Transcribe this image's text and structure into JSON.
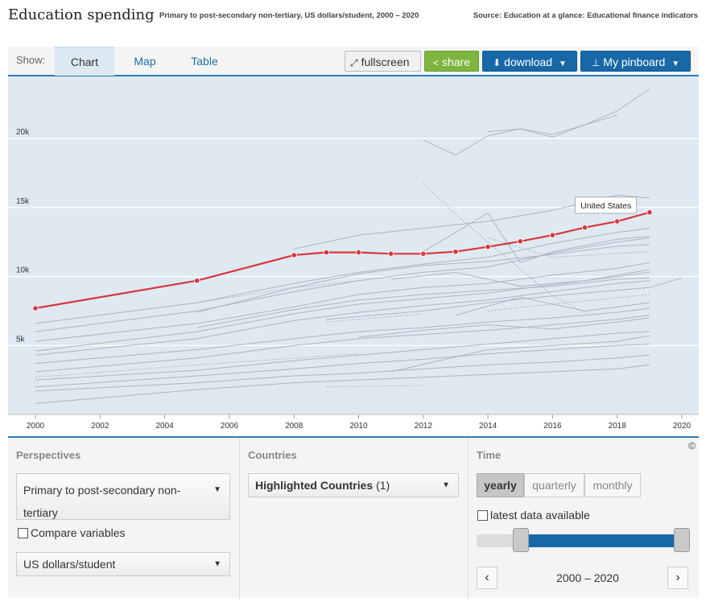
{
  "header": {
    "title": "Education spending",
    "subtitle": "Primary to post-secondary non-tertiary, US dollars/student, 2000 – 2020",
    "source": "Source: Education at a glance: Educational finance indicators"
  },
  "tabs": {
    "show_label": "Show:",
    "items": [
      {
        "label": "Chart",
        "active": true
      },
      {
        "label": "Map",
        "active": false
      },
      {
        "label": "Table",
        "active": false
      }
    ]
  },
  "toolbar": {
    "fullscreen_label": "fullscreen",
    "share_label": "share",
    "download_label": "download",
    "pinboard_label": "My pinboard"
  },
  "colors": {
    "highlight": "#d9363e",
    "background_lines": "#a9b7c2",
    "plot_bg": "#dfe9f2",
    "accent": "#1868a8"
  },
  "chart_data": {
    "type": "line",
    "x_ticks": [
      "2000",
      "2002",
      "2004",
      "2006",
      "2008",
      "2010",
      "2012",
      "2014",
      "2016",
      "2018",
      "2020"
    ],
    "y_ticks": [
      "5k",
      "10k",
      "15k",
      "20k"
    ],
    "xlim": [
      2000,
      2020
    ],
    "ylim": [
      0,
      24500
    ],
    "grid": true,
    "highlight_series": {
      "name": "United States",
      "label": "United States",
      "points": [
        [
          2000,
          7700
        ],
        [
          2005,
          9700
        ],
        [
          2008,
          11550
        ],
        [
          2009,
          11750
        ],
        [
          2010,
          11750
        ],
        [
          2011,
          11650
        ],
        [
          2012,
          11650
        ],
        [
          2013,
          11800
        ],
        [
          2014,
          12150
        ],
        [
          2015,
          12550
        ],
        [
          2016,
          13000
        ],
        [
          2017,
          13550
        ],
        [
          2018,
          14000
        ],
        [
          2019,
          14650
        ]
      ]
    },
    "background_series": [
      {
        "points": [
          [
            2012,
            19900
          ],
          [
            2013,
            18800
          ],
          [
            2014,
            20200
          ],
          [
            2015,
            20700
          ],
          [
            2016,
            20300
          ],
          [
            2017,
            21000
          ],
          [
            2018,
            22000
          ],
          [
            2019,
            23600
          ]
        ]
      },
      {
        "points": [
          [
            2014,
            20500
          ],
          [
            2015,
            20700
          ],
          [
            2016,
            20100
          ],
          [
            2017,
            21000
          ],
          [
            2018,
            21700
          ]
        ]
      },
      {
        "points": [
          [
            2000,
            6600
          ],
          [
            2005,
            8100
          ],
          [
            2008,
            9500
          ],
          [
            2010,
            10300
          ],
          [
            2012,
            10900
          ],
          [
            2014,
            11400
          ],
          [
            2016,
            12400
          ],
          [
            2018,
            13200
          ],
          [
            2019,
            13500
          ]
        ]
      },
      {
        "points": [
          [
            2000,
            6000
          ],
          [
            2005,
            7500
          ],
          [
            2008,
            8900
          ],
          [
            2010,
            9700
          ],
          [
            2012,
            10300
          ],
          [
            2014,
            10700
          ],
          [
            2016,
            11700
          ],
          [
            2018,
            12500
          ],
          [
            2019,
            12800
          ]
        ]
      },
      {
        "points": [
          [
            2005,
            7400
          ],
          [
            2008,
            9200
          ],
          [
            2010,
            10200
          ],
          [
            2012,
            10800
          ],
          [
            2014,
            11100
          ],
          [
            2016,
            11600
          ],
          [
            2018,
            12200
          ],
          [
            2019,
            12300
          ]
        ]
      },
      {
        "points": [
          [
            2000,
            5300
          ],
          [
            2005,
            6600
          ],
          [
            2008,
            7800
          ],
          [
            2010,
            8700
          ],
          [
            2012,
            9200
          ],
          [
            2014,
            9500
          ],
          [
            2016,
            10100
          ],
          [
            2018,
            10600
          ],
          [
            2019,
            11000
          ]
        ]
      },
      {
        "points": [
          [
            2000,
            4600
          ],
          [
            2005,
            6000
          ],
          [
            2008,
            7300
          ],
          [
            2010,
            8000
          ],
          [
            2012,
            8400
          ],
          [
            2014,
            8800
          ],
          [
            2016,
            9400
          ],
          [
            2018,
            10000
          ],
          [
            2019,
            10300
          ]
        ]
      },
      {
        "points": [
          [
            2000,
            4300
          ],
          [
            2005,
            5500
          ],
          [
            2008,
            6800
          ],
          [
            2010,
            7400
          ],
          [
            2012,
            7900
          ],
          [
            2014,
            8300
          ],
          [
            2016,
            8900
          ],
          [
            2018,
            9500
          ],
          [
            2019,
            9700
          ]
        ]
      },
      {
        "points": [
          [
            2005,
            6300
          ],
          [
            2008,
            7600
          ],
          [
            2010,
            8300
          ],
          [
            2012,
            8700
          ],
          [
            2014,
            9000
          ],
          [
            2016,
            9300
          ],
          [
            2018,
            9800
          ],
          [
            2019,
            9900
          ]
        ]
      },
      {
        "points": [
          [
            2008,
            12000
          ],
          [
            2010,
            13000
          ],
          [
            2012,
            13500
          ],
          [
            2014,
            14000
          ],
          [
            2016,
            14800
          ],
          [
            2018,
            15900
          ],
          [
            2019,
            15700
          ]
        ]
      },
      {
        "points": [
          [
            2012,
            11800
          ],
          [
            2014,
            14600
          ],
          [
            2015,
            11000
          ],
          [
            2016,
            11800
          ],
          [
            2018,
            12700
          ],
          [
            2019,
            12900
          ]
        ]
      },
      {
        "points": [
          [
            2000,
            3700
          ],
          [
            2005,
            4700
          ],
          [
            2008,
            5500
          ],
          [
            2010,
            6000
          ],
          [
            2012,
            6300
          ],
          [
            2014,
            6700
          ],
          [
            2016,
            7000
          ],
          [
            2018,
            7400
          ],
          [
            2019,
            7700
          ]
        ]
      },
      {
        "points": [
          [
            2000,
            3100
          ],
          [
            2005,
            4100
          ],
          [
            2008,
            5000
          ],
          [
            2010,
            5500
          ],
          [
            2012,
            5800
          ],
          [
            2014,
            6100
          ],
          [
            2016,
            6500
          ],
          [
            2018,
            6900
          ],
          [
            2019,
            7200
          ]
        ]
      },
      {
        "points": [
          [
            2000,
            2500
          ],
          [
            2005,
            3200
          ],
          [
            2008,
            3900
          ],
          [
            2010,
            4300
          ],
          [
            2012,
            4700
          ],
          [
            2014,
            5100
          ],
          [
            2016,
            5500
          ],
          [
            2018,
            5900
          ],
          [
            2019,
            6000
          ]
        ]
      },
      {
        "points": [
          [
            2000,
            2000
          ],
          [
            2005,
            2800
          ],
          [
            2008,
            3300
          ],
          [
            2010,
            3700
          ],
          [
            2012,
            4000
          ],
          [
            2014,
            4400
          ],
          [
            2016,
            4700
          ],
          [
            2018,
            5000
          ],
          [
            2019,
            5100
          ]
        ]
      },
      {
        "points": [
          [
            2000,
            1700
          ],
          [
            2005,
            2300
          ],
          [
            2008,
            2800
          ],
          [
            2010,
            3000
          ],
          [
            2012,
            3300
          ],
          [
            2014,
            3600
          ],
          [
            2016,
            3800
          ],
          [
            2018,
            4100
          ],
          [
            2019,
            4300
          ]
        ]
      },
      {
        "points": [
          [
            2000,
            800
          ],
          [
            2005,
            1800
          ],
          [
            2008,
            2300
          ],
          [
            2010,
            2500
          ],
          [
            2012,
            2700
          ],
          [
            2014,
            2900
          ],
          [
            2016,
            3100
          ],
          [
            2018,
            3300
          ],
          [
            2019,
            3600
          ]
        ]
      },
      {
        "points": [
          [
            2011,
            3100
          ],
          [
            2014,
            4700
          ],
          [
            2016,
            5000
          ],
          [
            2018,
            5300
          ],
          [
            2019,
            5700
          ]
        ]
      },
      {
        "points": [
          [
            2009,
            6900
          ],
          [
            2012,
            7500
          ],
          [
            2014,
            8100
          ],
          [
            2016,
            8600
          ],
          [
            2019,
            9200
          ],
          [
            2020,
            9900
          ]
        ]
      },
      {
        "points": [
          [
            2011,
            9800
          ],
          [
            2013,
            10300
          ],
          [
            2015,
            9300
          ],
          [
            2017,
            9700
          ],
          [
            2019,
            10500
          ]
        ]
      },
      {
        "points": [
          [
            2013,
            7200
          ],
          [
            2015,
            8500
          ],
          [
            2017,
            7500
          ],
          [
            2019,
            8100
          ]
        ]
      },
      {
        "points": [
          [
            2010,
            5600
          ],
          [
            2012,
            6100
          ],
          [
            2014,
            6500
          ],
          [
            2016,
            6200
          ],
          [
            2018,
            6700
          ],
          [
            2019,
            7000
          ]
        ]
      }
    ],
    "dashed_series": [
      {
        "points": [
          [
            2012,
            16800
          ],
          [
            2013,
            14500
          ],
          [
            2014,
            12500
          ],
          [
            2016,
            8600
          ],
          [
            2017,
            7400
          ]
        ]
      },
      {
        "points": [
          [
            2005,
            8100
          ],
          [
            2008,
            9200
          ],
          [
            2010,
            9700
          ]
        ]
      },
      {
        "points": [
          [
            2009,
            6700
          ],
          [
            2012,
            7300
          ]
        ]
      },
      {
        "points": [
          [
            2000,
            2700
          ],
          [
            2005,
            3600
          ],
          [
            2010,
            4400
          ]
        ]
      },
      {
        "points": [
          [
            2009,
            2000
          ],
          [
            2012,
            2100
          ]
        ]
      },
      {
        "points": [
          [
            2014,
            12800
          ],
          [
            2016,
            11400
          ],
          [
            2019,
            11800
          ]
        ]
      },
      {
        "points": [
          [
            2014,
            7500
          ],
          [
            2016,
            8000
          ],
          [
            2019,
            8700
          ]
        ]
      }
    ]
  },
  "controls": {
    "copyright": "©",
    "perspectives": {
      "heading": "Perspectives",
      "select_value": "Primary to post-secondary non-tertiary",
      "compare_label": "Compare variables",
      "unit_value": "US dollars/student"
    },
    "countries": {
      "heading": "Countries",
      "select_value": "Highlighted Countries",
      "select_count": "(1)"
    },
    "time": {
      "heading": "Time",
      "segments": [
        {
          "label": "yearly",
          "active": true
        },
        {
          "label": "quarterly",
          "active": false
        },
        {
          "label": "monthly",
          "active": false
        }
      ],
      "latest_label": "latest data available",
      "range_label": "2000 – 2020",
      "prev_icon": "‹",
      "next_icon": "›"
    }
  }
}
